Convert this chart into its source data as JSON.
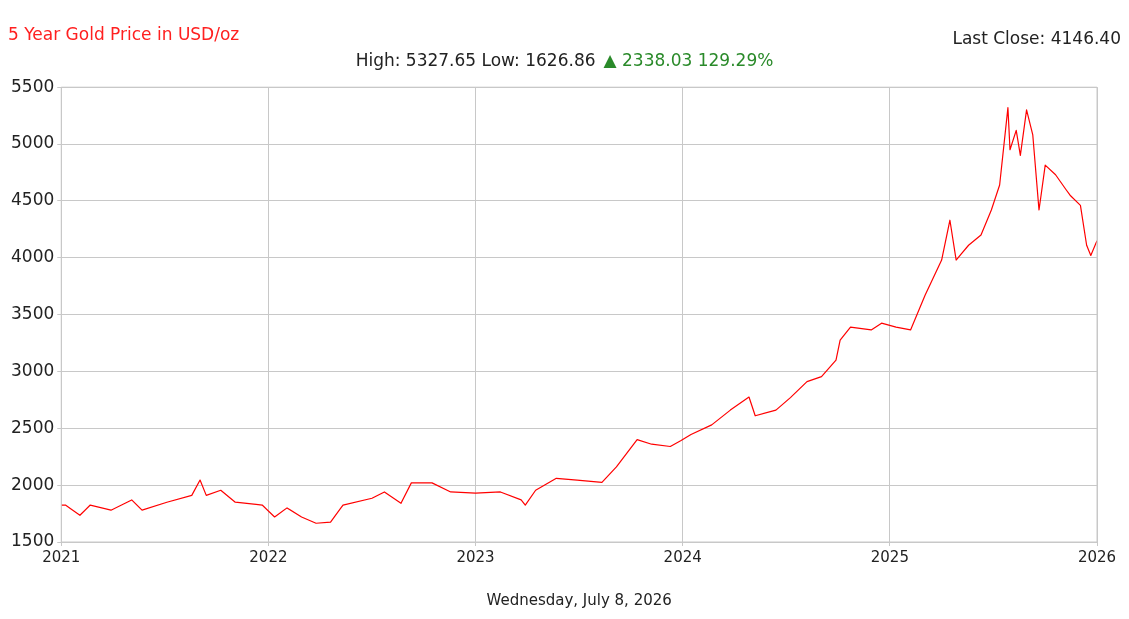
{
  "chart_data": {
    "type": "line",
    "title": "5 Year Gold Price in USD/oz",
    "subtitle": "High: 5327.65 Low: 1626.86",
    "annotations": [
      "▲ 2338.03 129.29%",
      "Last Close: 4146.40"
    ],
    "xlabel": "Wednesday, July 8, 2026",
    "x": [
      2021.0,
      2021.02,
      2021.09,
      2021.14,
      2021.24,
      2021.34,
      2021.39,
      2021.51,
      2021.63,
      2021.67,
      2021.7,
      2021.77,
      2021.84,
      2021.97,
      2022.03,
      2022.09,
      2022.16,
      2022.23,
      2022.3,
      2022.36,
      2022.5,
      2022.56,
      2022.64,
      2022.69,
      2022.79,
      2022.88,
      2023.0,
      2023.12,
      2023.22,
      2023.24,
      2023.29,
      2023.39,
      2023.49,
      2023.61,
      2023.68,
      2023.78,
      2023.85,
      2023.94,
      2023.99,
      2024.04,
      2024.14,
      2024.23,
      2024.32,
      2024.35,
      2024.45,
      2024.52,
      2024.6,
      2024.67,
      2024.74,
      2024.76,
      2024.81,
      2024.91,
      2024.96,
      2025.03,
      2025.1,
      2025.17,
      2025.25,
      2025.29,
      2025.32,
      2025.38,
      2025.44,
      2025.49,
      2025.53,
      2025.57,
      2025.58,
      2025.61,
      2025.63,
      2025.66,
      2025.69,
      2025.72,
      2025.73,
      2025.75,
      2025.8,
      2025.85,
      2025.87,
      2025.92,
      2025.95,
      2025.97,
      2026.0
    ],
    "series": [
      {
        "color": "#ff0000",
        "values": [
          1825,
          1825,
          1735,
          1825,
          1780,
          1870,
          1780,
          1850,
          1910,
          2045,
          1910,
          1955,
          1850,
          1825,
          1720,
          1800,
          1720,
          1665,
          1675,
          1825,
          1885,
          1940,
          1840,
          2020,
          2020,
          1940,
          1930,
          1940,
          1870,
          1825,
          1955,
          2060,
          2045,
          2025,
          2160,
          2400,
          2360,
          2340,
          2390,
          2445,
          2530,
          2660,
          2775,
          2610,
          2660,
          2770,
          2910,
          2955,
          3100,
          3275,
          3390,
          3365,
          3425,
          3390,
          3365,
          3670,
          3980,
          4330,
          3980,
          4110,
          4200,
          4420,
          4640,
          5320,
          4950,
          5120,
          4900,
          5300,
          5080,
          4420,
          4550,
          4815,
          4730,
          4600,
          4550,
          4460,
          4110,
          4020,
          4150
        ]
      }
    ],
    "xlim": [
      2021,
      2026
    ],
    "xticks": [
      2021,
      2022,
      2023,
      2024,
      2025,
      2026
    ],
    "ylim": [
      1500,
      5500
    ],
    "yticks": [
      1500,
      2000,
      2500,
      3000,
      3500,
      4000,
      4500,
      5000,
      5500
    ],
    "grid": true,
    "legend": false,
    "marker": "none",
    "line_style": "solid"
  }
}
